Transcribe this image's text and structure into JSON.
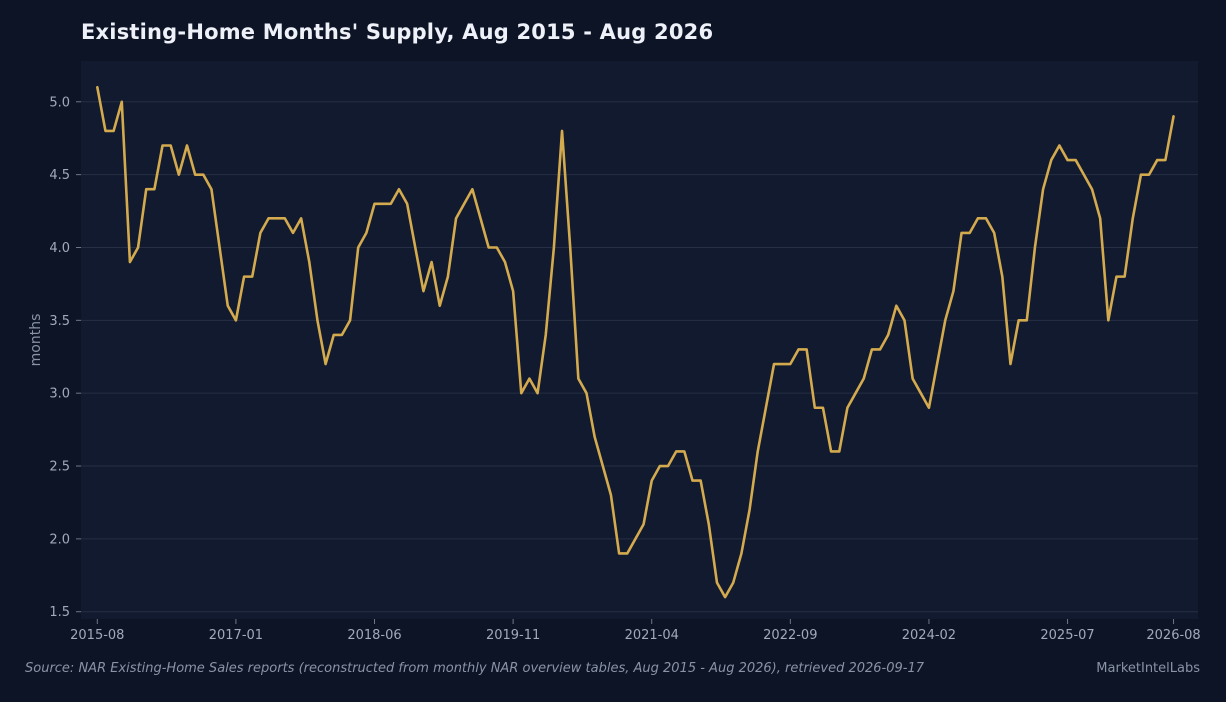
{
  "chart_data": {
    "type": "line",
    "title": "Existing-Home Months' Supply, Aug 2015 - Aug 2026",
    "xlabel": "",
    "ylabel": "months",
    "ylim": [
      1.45,
      5.28
    ],
    "xlim": [
      "2015-06",
      "2026-11"
    ],
    "yticks": [
      1.5,
      2.0,
      2.5,
      3.0,
      3.5,
      4.0,
      4.5,
      5.0
    ],
    "xticks": [
      "2015-08",
      "2017-01",
      "2018-06",
      "2019-11",
      "2021-04",
      "2022-09",
      "2024-02",
      "2025-07",
      "2026-08"
    ],
    "grid": "horizontal",
    "colors": {
      "line": "#d4aa4f",
      "plot_background": "#111a2e",
      "page_background": "#0d1426",
      "grid": "#262f44"
    },
    "x_start": "2015-08",
    "x_end": "2026-08",
    "values": [
      5.1,
      4.8,
      4.8,
      5.0,
      3.9,
      4.0,
      4.4,
      4.4,
      4.7,
      4.7,
      4.5,
      4.7,
      4.5,
      4.5,
      4.4,
      4.0,
      3.6,
      3.5,
      3.8,
      3.8,
      4.1,
      4.2,
      4.2,
      4.2,
      4.1,
      4.2,
      3.9,
      3.5,
      3.2,
      3.4,
      3.4,
      3.5,
      4.0,
      4.1,
      4.3,
      4.3,
      4.3,
      4.4,
      4.3,
      4.0,
      3.7,
      3.9,
      3.6,
      3.8,
      4.2,
      4.3,
      4.4,
      4.2,
      4.0,
      4.0,
      3.9,
      3.7,
      3.0,
      3.1,
      3.0,
      3.4,
      4.0,
      4.8,
      4.0,
      3.1,
      3.0,
      2.7,
      2.5,
      2.3,
      1.9,
      1.9,
      2.0,
      2.1,
      2.4,
      2.5,
      2.5,
      2.6,
      2.6,
      2.4,
      2.4,
      2.1,
      1.7,
      1.6,
      1.7,
      1.9,
      2.2,
      2.6,
      2.9,
      3.2,
      3.2,
      3.2,
      3.3,
      3.3,
      2.9,
      2.9,
      2.6,
      2.6,
      2.9,
      3.0,
      3.1,
      3.3,
      3.3,
      3.4,
      3.6,
      3.5,
      3.1,
      3.0,
      2.9,
      3.2,
      3.5,
      3.7,
      4.1,
      4.1,
      4.2,
      4.2,
      4.1,
      3.8,
      3.2,
      3.5,
      3.5,
      4.0,
      4.4,
      4.6,
      4.7,
      4.6,
      4.6,
      4.5,
      4.4,
      4.2,
      3.5,
      3.8,
      3.8,
      4.2,
      4.5,
      4.5,
      4.6,
      4.6,
      4.9
    ]
  },
  "source_note": "Source: NAR Existing-Home Sales reports (reconstructed from monthly NAR overview tables, Aug 2015 - Aug 2026), retrieved 2026-09-17",
  "brand": "MarketIntelLabs"
}
